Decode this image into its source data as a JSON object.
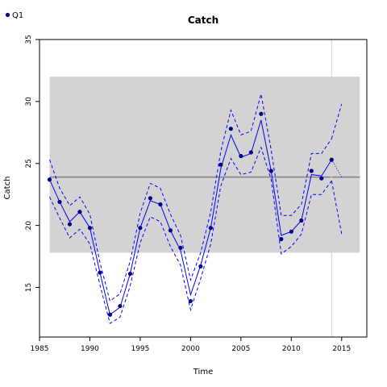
{
  "chart_data": {
    "type": "line",
    "title": "Catch",
    "xlabel": "Time",
    "ylabel": "Catch",
    "xlim": [
      1985,
      2017.5
    ],
    "ylim": [
      11,
      35
    ],
    "xticks": [
      1985,
      1990,
      1995,
      2000,
      2005,
      2010,
      2015
    ],
    "yticks": [
      15,
      20,
      25,
      30,
      35
    ],
    "legend": {
      "position": "top-left",
      "entries": [
        {
          "label": "Q1",
          "color": "#00008b"
        }
      ]
    },
    "band": {
      "x": [
        1986,
        2016.8
      ],
      "y": [
        17.8,
        32.0
      ],
      "color": "#d3d3d3"
    },
    "hline": {
      "y": 23.9,
      "color": "#808080"
    },
    "vline": {
      "x": 2014,
      "color": "#d3d3d3"
    },
    "colors": {
      "points": "#00008b",
      "fit": "#0000ff"
    },
    "series": [
      {
        "name": "Q1",
        "style": "points",
        "x": [
          1986,
          1987,
          1988,
          1989,
          1990,
          1991,
          1992,
          1993,
          1994,
          1995,
          1996,
          1997,
          1998,
          1999,
          2000,
          2001,
          2002,
          2003,
          2004,
          2005,
          2006,
          2007,
          2008,
          2009,
          2010,
          2011,
          2012,
          2013,
          2014
        ],
        "y": [
          23.7,
          21.9,
          20.1,
          21.1,
          19.8,
          16.2,
          12.8,
          13.5,
          16.1,
          19.8,
          22.2,
          21.7,
          19.6,
          18.2,
          13.9,
          16.7,
          19.8,
          24.9,
          27.8,
          25.6,
          25.9,
          29.0,
          24.4,
          18.9,
          19.5,
          20.4,
          24.4,
          23.8,
          25.3
        ]
      },
      {
        "style": "fit",
        "x": [
          1986,
          1987,
          1988,
          1989,
          1990,
          1991,
          1992,
          1993,
          1994,
          1995,
          1996,
          1997,
          1998,
          1999,
          2000,
          2001,
          2002,
          2003,
          2004,
          2005,
          2006,
          2007,
          2008,
          2009,
          2010,
          2011,
          2012,
          2013,
          2014
        ],
        "y": [
          23.7,
          21.9,
          20.3,
          21.1,
          19.8,
          16.2,
          12.8,
          13.4,
          16.1,
          19.8,
          22.0,
          21.7,
          19.6,
          18.0,
          14.4,
          16.8,
          19.8,
          24.6,
          27.3,
          25.5,
          25.8,
          28.5,
          24.4,
          19.2,
          19.5,
          20.4,
          24.1,
          24.0,
          25.3
        ]
      },
      {
        "style": "fit-upper",
        "x": [
          1986,
          1987,
          1988,
          1989,
          1990,
          1991,
          1992,
          1993,
          1994,
          1995,
          1996,
          1997,
          1998,
          1999,
          2000,
          2001,
          2002,
          2003,
          2004,
          2005,
          2006,
          2007,
          2008,
          2009,
          2010,
          2011,
          2012,
          2013,
          2014
        ],
        "y": [
          25.3,
          23.0,
          21.6,
          22.3,
          20.9,
          17.0,
          13.9,
          14.5,
          17.1,
          21.0,
          23.4,
          23.0,
          20.9,
          19.2,
          15.6,
          17.8,
          21.1,
          26.0,
          29.3,
          27.3,
          27.6,
          30.6,
          26.1,
          20.8,
          20.8,
          21.7,
          25.8,
          25.8,
          27.0
        ]
      },
      {
        "style": "fit-lower",
        "x": [
          1986,
          1987,
          1988,
          1989,
          1990,
          1991,
          1992,
          1993,
          1994,
          1995,
          1996,
          1997,
          1998,
          1999,
          2000,
          2001,
          2002,
          2003,
          2004,
          2005,
          2006,
          2007,
          2008,
          2009,
          2010,
          2011,
          2012,
          2013,
          2014
        ],
        "y": [
          22.3,
          20.6,
          19.0,
          19.7,
          18.5,
          15.2,
          12.1,
          12.6,
          15.1,
          18.6,
          20.7,
          20.3,
          18.3,
          16.8,
          13.2,
          15.7,
          18.5,
          23.2,
          25.4,
          24.1,
          24.3,
          26.3,
          23.7,
          17.7,
          18.3,
          19.3,
          22.5,
          22.5,
          23.6
        ]
      },
      {
        "style": "forecast",
        "x": [
          2014,
          2015
        ],
        "y": [
          25.3,
          23.9
        ]
      },
      {
        "style": "forecast-upper",
        "x": [
          2014,
          2015
        ],
        "y": [
          27.0,
          29.8
        ]
      },
      {
        "style": "forecast-lower",
        "x": [
          2014,
          2015
        ],
        "y": [
          23.6,
          19.3
        ]
      }
    ]
  }
}
